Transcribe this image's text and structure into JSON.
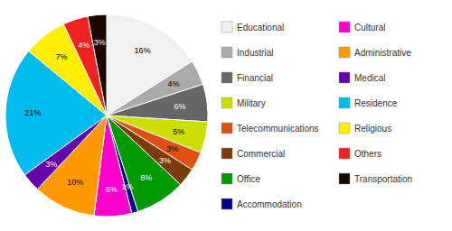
{
  "chart_data": {
    "type": "pie",
    "categories": [
      "Educational",
      "Industrial",
      "Financial",
      "Military",
      "Telecommunications",
      "Commercial",
      "Office",
      "Accommodation",
      "Cultural",
      "Administrative",
      "Medical",
      "Residence",
      "Religious",
      "Others",
      "Transportation"
    ],
    "values": [
      16,
      4,
      6,
      5,
      3,
      3,
      8,
      1,
      6,
      10,
      3,
      21,
      7,
      4,
      3
    ],
    "value_labels": [
      "16%",
      "4%",
      "6%",
      "5%",
      "3%",
      "3%",
      "8%",
      "1%",
      "6%",
      "10%",
      "3%",
      "21%",
      "7%",
      "4%",
      "3%"
    ],
    "colors": [
      "#f0f0f0",
      "#aaaaaa",
      "#666666",
      "#ccdd00",
      "#e05010",
      "#7B3B0A",
      "#009900",
      "#00008B",
      "#ff00cc",
      "#ff9900",
      "#6600aa",
      "#00bbee",
      "#ffee00",
      "#ee2222",
      "#1a0800"
    ],
    "data_labels": true,
    "legend": "right"
  }
}
